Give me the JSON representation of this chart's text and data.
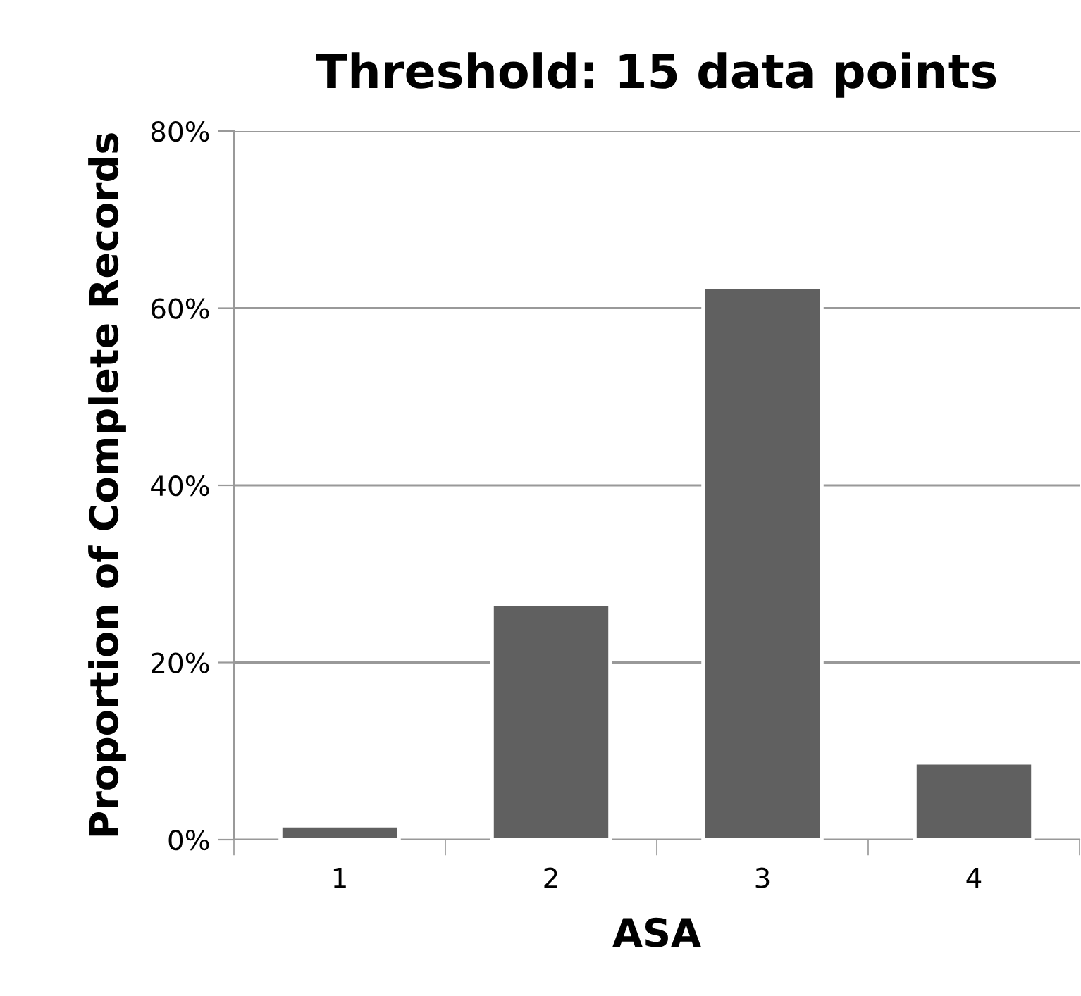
{
  "chart_data": {
    "type": "bar",
    "title": "Threshold: 15 data points",
    "xlabel": "ASA",
    "ylabel": "Proportion of Complete Records",
    "categories": [
      "1",
      "2",
      "3",
      "4"
    ],
    "values": [
      1.6,
      26.6,
      62.4,
      8.7
    ],
    "color": "#606060",
    "ylim": [
      0,
      80
    ],
    "yticks": [
      {
        "value": 0,
        "label": "0%"
      },
      {
        "value": 20,
        "label": "20%"
      },
      {
        "value": 40,
        "label": "40%"
      },
      {
        "value": 60,
        "label": "60%"
      },
      {
        "value": 80,
        "label": "80%"
      }
    ],
    "grid": "y",
    "legend": false
  }
}
